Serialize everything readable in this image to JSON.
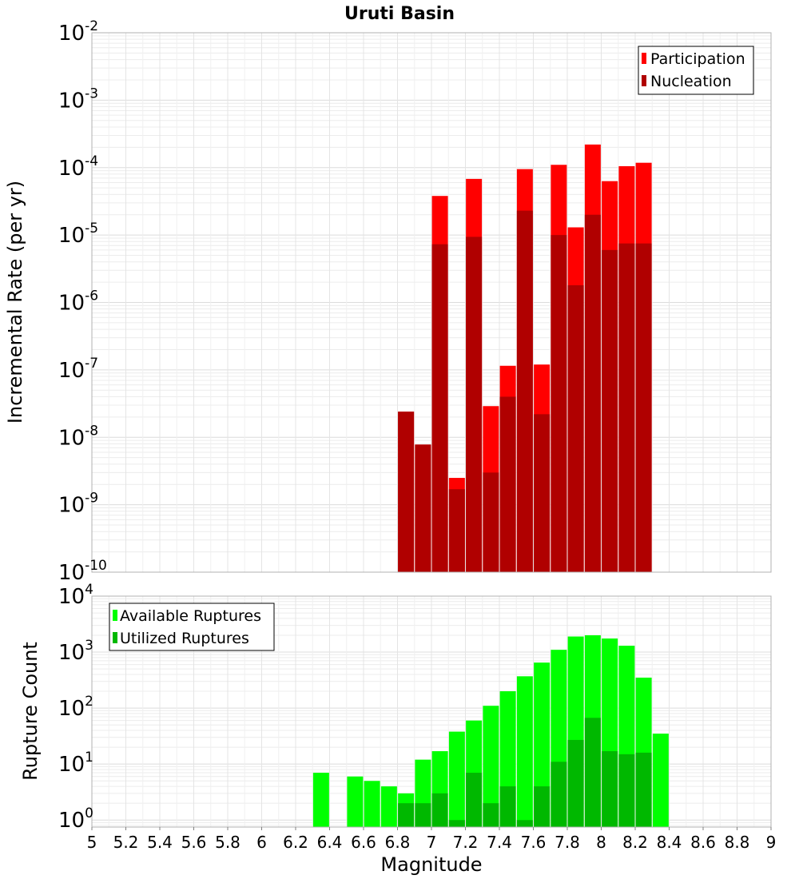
{
  "chart_data": [
    {
      "type": "bar",
      "title": "Uruti Basin",
      "xlabel": "",
      "ylabel": "Incremental Rate (per yr)",
      "yscale": "log",
      "ylim": [
        1e-10,
        0.01
      ],
      "xlim": [
        5,
        9
      ],
      "grid": true,
      "legend_position": "top-right",
      "legend": [
        "Participation",
        "Nucleation"
      ],
      "colors": {
        "Participation": "#ff0000",
        "Nucleation": "#b00000"
      },
      "x": [
        6.85,
        6.95,
        7.05,
        7.15,
        7.25,
        7.35,
        7.45,
        7.55,
        7.65,
        7.75,
        7.85,
        7.95,
        8.05,
        8.15,
        8.25
      ],
      "series": [
        {
          "name": "Participation",
          "values": [
            2.4e-08,
            7.8e-09,
            3.8e-05,
            2.5e-09,
            6.8e-05,
            2.9e-08,
            1.15e-07,
            9.5e-05,
            1.2e-07,
            0.00011,
            1.3e-05,
            0.00022,
            6.3e-05,
            0.000105,
            0.000118
          ]
        },
        {
          "name": "Nucleation",
          "values": [
            2.4e-08,
            7.8e-09,
            7.3e-06,
            1.7e-09,
            9.4e-06,
            3e-09,
            4e-08,
            2.3e-05,
            2.2e-08,
            1e-05,
            1.8e-06,
            2e-05,
            6e-06,
            7.5e-06,
            7.5e-06
          ]
        }
      ]
    },
    {
      "type": "bar",
      "xlabel": "Magnitude",
      "ylabel": "Rupture Count",
      "yscale": "log",
      "ylim": [
        0.75,
        10000
      ],
      "xlim": [
        5,
        9
      ],
      "grid": true,
      "legend_position": "top-left",
      "legend": [
        "Available Ruptures",
        "Utilized Ruptures"
      ],
      "colors": {
        "Available Ruptures": "#00ff00",
        "Utilized Ruptures": "#00b800"
      },
      "x": [
        6.35,
        6.55,
        6.65,
        6.75,
        6.85,
        6.95,
        7.05,
        7.15,
        7.25,
        7.35,
        7.45,
        7.55,
        7.65,
        7.75,
        7.85,
        7.95,
        8.05,
        8.15,
        8.25,
        8.35
      ],
      "series": [
        {
          "name": "Available Ruptures",
          "values": [
            7,
            6,
            5,
            4,
            3,
            12,
            17,
            38,
            60,
            110,
            200,
            370,
            650,
            1100,
            1900,
            2000,
            1750,
            1300,
            350,
            35
          ]
        },
        {
          "name": "Utilized Ruptures",
          "values": [
            0,
            0,
            0,
            0,
            2,
            2,
            3,
            1,
            7,
            2,
            4,
            1,
            4,
            11,
            27,
            67,
            17,
            15,
            16,
            0
          ]
        }
      ],
      "xticks": [
        "5",
        "5.2",
        "5.4",
        "5.6",
        "5.8",
        "6",
        "6.2",
        "6.4",
        "6.6",
        "6.8",
        "7",
        "7.2",
        "7.4",
        "7.6",
        "7.8",
        "8",
        "8.2",
        "8.4",
        "8.6",
        "8.8",
        "9"
      ]
    }
  ],
  "top_yticks": [
    {
      "base": "10",
      "exp": "-2"
    },
    {
      "base": "10",
      "exp": "-3"
    },
    {
      "base": "10",
      "exp": "-4"
    },
    {
      "base": "10",
      "exp": "-5"
    },
    {
      "base": "10",
      "exp": "-6"
    },
    {
      "base": "10",
      "exp": "-7"
    },
    {
      "base": "10",
      "exp": "-8"
    },
    {
      "base": "10",
      "exp": "-9"
    },
    {
      "base": "10",
      "exp": "-10"
    }
  ],
  "bottom_yticks": [
    {
      "base": "10",
      "exp": "4"
    },
    {
      "base": "10",
      "exp": "3"
    },
    {
      "base": "10",
      "exp": "2"
    },
    {
      "base": "10",
      "exp": "1"
    },
    {
      "base": "10",
      "exp": "0"
    }
  ]
}
